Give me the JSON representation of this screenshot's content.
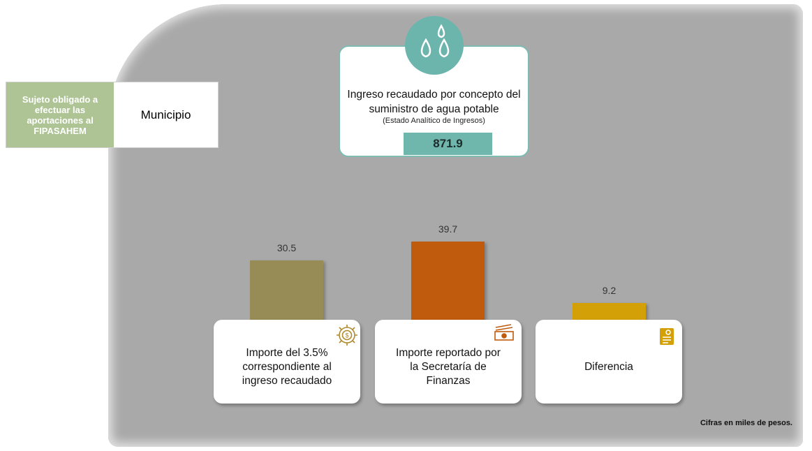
{
  "subject": {
    "label": "Sujeto obligado a efectuar las aportaciones al FIPASAHEM",
    "value": "Municipio"
  },
  "income_card": {
    "title": "Ingreso recaudado por concepto del suministro de agua potable",
    "source": "(Estado Analítico de Ingresos)",
    "value": 871.9
  },
  "chart_data": {
    "type": "bar",
    "categories": [
      "Importe del 3.5% correspondiente al ingreso recaudado",
      "Importe reportado por la Secretaría de Finanzas",
      "Diferencia"
    ],
    "values": [
      30.5,
      39.7,
      9.2
    ],
    "colors": [
      "#978c55",
      "#c05a0c",
      "#d4a007"
    ]
  },
  "note": "Cifras en miles de pesos."
}
